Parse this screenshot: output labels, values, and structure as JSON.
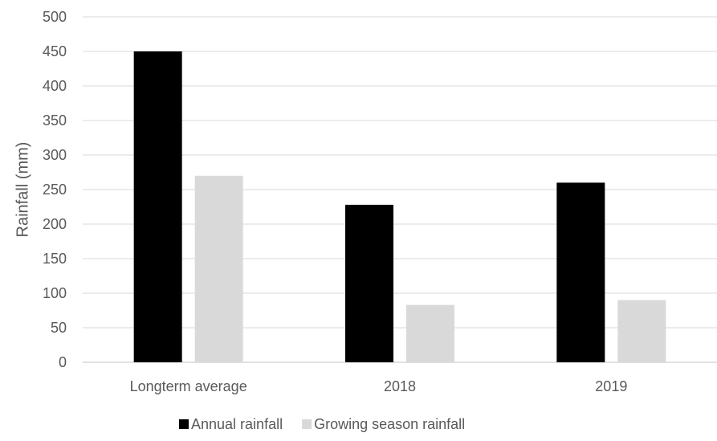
{
  "chart_data": {
    "type": "bar",
    "title": "",
    "xlabel": "",
    "ylabel": "Rainfall (mm)",
    "categories": [
      "Longterm average",
      "2018",
      "2019"
    ],
    "series": [
      {
        "name": "Annual rainfall",
        "values": [
          450,
          228,
          260
        ],
        "color": "#000000"
      },
      {
        "name": "Growing season rainfall",
        "values": [
          270,
          83,
          90
        ],
        "color": "#d9d9d9"
      }
    ],
    "ylim": [
      0,
      500
    ],
    "yticks": [
      0,
      50,
      100,
      150,
      200,
      250,
      300,
      350,
      400,
      450,
      500
    ],
    "grid": true,
    "legend_position": "bottom"
  }
}
